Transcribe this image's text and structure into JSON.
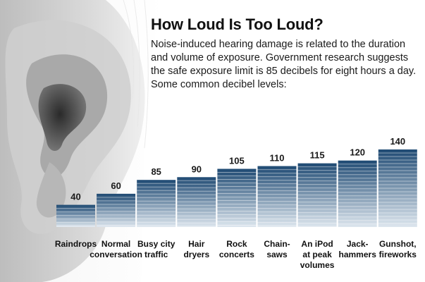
{
  "title": "How Loud Is Too Loud?",
  "subtitle": "Noise-induced hearing damage is related to the duration and volume of exposure. Government research suggests the safe exposure limit is 85 decibels for eight hours a day. Some common decibel levels:",
  "colors": {
    "bar_top": "#1f4a73",
    "bar_bottom": "#dde6ee",
    "stripe": "#ffffff",
    "text": "#111111"
  },
  "illustration": "ear-icon",
  "chart_data": {
    "type": "bar",
    "title": "How Loud Is Too Loud?",
    "xlabel": "",
    "ylabel": "",
    "categories": [
      [
        "Raindrops"
      ],
      [
        "Normal",
        "conversation"
      ],
      [
        "Busy city",
        "traffic"
      ],
      [
        "Hair",
        "dryers"
      ],
      [
        "Rock",
        "concerts"
      ],
      [
        "Chain-",
        "saws"
      ],
      [
        "An iPod",
        "at peak",
        "volumes"
      ],
      [
        "Jack-",
        "hammers"
      ],
      [
        "Gunshot,",
        "fireworks"
      ]
    ],
    "values": [
      40,
      60,
      85,
      90,
      105,
      110,
      115,
      120,
      140
    ],
    "ylim": [
      0,
      140
    ],
    "grid": false,
    "legend": "none"
  }
}
